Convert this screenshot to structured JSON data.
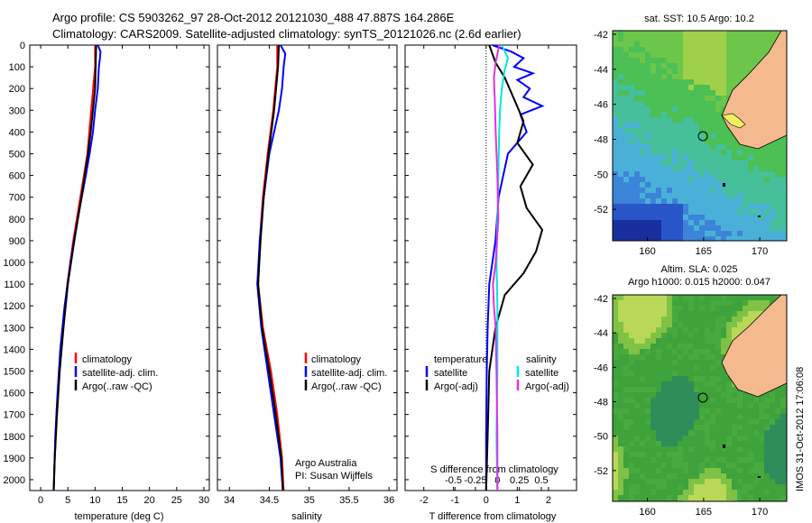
{
  "title_line1": "Argo profile: CS 5903262_97 28-Oct-2012 20121030_488 47.887S 164.286E",
  "title_line2": "Climatology: CARS2009. Satellite-adjusted climatology: synTS_20121026.nc (2.6d earlier)",
  "side_text": "IMOS 31-Oct-2012 17:06:08",
  "colors": {
    "climatology": "#ff0000",
    "satellite": "#0000ff",
    "argo": "#000000",
    "sal_satellite": "#00e5e5",
    "sal_argo": "#e033e0",
    "land": "#f4b98e"
  },
  "depth_ticks": [
    "0",
    "100",
    "200",
    "300",
    "400",
    "500",
    "600",
    "700",
    "800",
    "900",
    "1000",
    "1100",
    "1200",
    "1300",
    "1400",
    "1500",
    "1600",
    "1700",
    "1800",
    "1900",
    "2000"
  ],
  "panel1": {
    "xlabel": "temperature (deg C)",
    "xticks": [
      "0",
      "5",
      "10",
      "15",
      "20",
      "25",
      "30"
    ],
    "legend": [
      "climatology",
      "satellite-adj. clim.",
      "Argo(..raw -QC)"
    ]
  },
  "panel2": {
    "xlabel": "salinity",
    "xticks": [
      "34",
      "34.5",
      "35",
      "35.5",
      "36"
    ],
    "legend": [
      "climatology",
      "satellite-adj. clim.",
      "Argo(..raw -QC)"
    ],
    "note1": "Argo Australia",
    "note2": "PI: Susan Wijffels"
  },
  "panel3": {
    "xlabel": "T difference from climatology",
    "top_label": "S difference from climatology",
    "xticks": [
      "-2",
      "-1",
      "0",
      "1",
      "2"
    ],
    "sticks": [
      "-0.5",
      "-0.25",
      "0",
      "0.25",
      "0.5"
    ],
    "legend_temp_title": "temperature",
    "legend_sal_title": "salinity",
    "legend_temp": [
      "satellite",
      "Argo(-adj)"
    ],
    "legend_sal": [
      "satellite",
      "Argo(-adj)"
    ]
  },
  "map1": {
    "title": "sat. SST: 10.5  Argo: 10.2",
    "yticks": [
      "-42",
      "-44",
      "-46",
      "-48",
      "-50",
      "-52"
    ],
    "xticks": [
      "160",
      "165",
      "170"
    ]
  },
  "map2": {
    "title_line1": "Altim. SLA: 0.025",
    "title_line2": "Argo h1000: 0.015  h2000: 0.047",
    "yticks": [
      "-42",
      "-44",
      "-46",
      "-48",
      "-50",
      "-52"
    ],
    "xticks": [
      "160",
      "165",
      "170"
    ]
  },
  "chart_data": [
    {
      "type": "line",
      "name": "temperature profile",
      "xlabel": "temperature (deg C)",
      "ylim": [
        0,
        2050
      ],
      "xlim": [
        -2,
        31
      ],
      "series": [
        {
          "name": "climatology",
          "depth": [
            0,
            100,
            300,
            500,
            700,
            900,
            1100,
            1300,
            1500,
            1700,
            1900,
            2050
          ],
          "values": [
            10.0,
            10.0,
            9.3,
            8.6,
            7.3,
            6.0,
            4.9,
            4.1,
            3.4,
            2.9,
            2.6,
            2.4
          ]
        },
        {
          "name": "satellite-adj. clim.",
          "depth": [
            0,
            30,
            60,
            100,
            200,
            300,
            400,
            500,
            600,
            800,
            1000,
            1200,
            1400,
            1600,
            1800,
            2050
          ],
          "values": [
            10.5,
            11.0,
            10.9,
            10.7,
            10.5,
            10.0,
            9.6,
            9.0,
            8.3,
            6.8,
            5.5,
            4.4,
            3.6,
            3.1,
            2.7,
            2.4
          ]
        },
        {
          "name": "Argo(..raw -QC)",
          "depth": [
            0,
            100,
            200,
            300,
            400,
            500,
            700,
            900,
            1100,
            1300,
            1500,
            1700,
            1900,
            2050
          ],
          "values": [
            10.2,
            10.1,
            10.0,
            9.6,
            9.2,
            8.7,
            7.5,
            6.2,
            5.0,
            4.2,
            3.5,
            3.0,
            2.6,
            2.4
          ]
        }
      ]
    },
    {
      "type": "line",
      "name": "salinity profile",
      "xlabel": "salinity",
      "ylim": [
        0,
        2050
      ],
      "xlim": [
        33.85,
        36.1
      ],
      "series": [
        {
          "name": "climatology",
          "depth": [
            0,
            100,
            300,
            500,
            700,
            900,
            1100,
            1300,
            1500,
            1700,
            1900,
            2050
          ],
          "values": [
            34.6,
            34.6,
            34.55,
            34.48,
            34.42,
            34.38,
            34.36,
            34.42,
            34.52,
            34.6,
            34.66,
            34.68
          ]
        },
        {
          "name": "satellite-adj. clim.",
          "depth": [
            0,
            40,
            100,
            200,
            300,
            400,
            500,
            700,
            900,
            1100,
            1300,
            1500,
            1700,
            1900,
            2050
          ],
          "values": [
            34.64,
            34.7,
            34.68,
            34.66,
            34.62,
            34.56,
            34.5,
            34.43,
            34.38,
            34.35,
            34.4,
            34.48,
            34.56,
            34.64,
            34.67
          ]
        },
        {
          "name": "Argo(..raw -QC)",
          "depth": [
            0,
            100,
            300,
            500,
            700,
            900,
            1100,
            1300,
            1500,
            1700,
            1900,
            2050
          ],
          "values": [
            34.62,
            34.61,
            34.56,
            34.49,
            34.43,
            34.39,
            34.36,
            34.41,
            34.5,
            34.58,
            34.65,
            34.67
          ]
        }
      ]
    },
    {
      "type": "line",
      "name": "difference from climatology",
      "xlabel": "T difference from climatology",
      "ylim": [
        0,
        2050
      ],
      "xlim": [
        -2.6,
        2.9
      ],
      "series": [
        {
          "name": "temperature satellite",
          "depth": [
            0,
            30,
            60,
            100,
            130,
            160,
            200,
            240,
            280,
            320,
            400,
            500,
            700,
            900,
            1100,
            1300,
            1500,
            1800,
            2050
          ],
          "values": [
            0.2,
            0.8,
            1.2,
            0.9,
            1.5,
            1.0,
            1.4,
            1.2,
            1.8,
            1.1,
            1.3,
            0.7,
            0.4,
            0.3,
            0.1,
            0.05,
            0.02,
            0.0,
            0.0
          ]
        },
        {
          "name": "temperature Argo(-adj)",
          "depth": [
            0,
            80,
            150,
            250,
            350,
            450,
            550,
            650,
            750,
            850,
            950,
            1050,
            1150,
            1300,
            1500,
            1800,
            2050
          ],
          "values": [
            0.1,
            0.3,
            0.6,
            0.9,
            1.2,
            1.0,
            1.5,
            1.1,
            1.3,
            1.8,
            1.6,
            1.2,
            0.6,
            0.3,
            0.1,
            0.05,
            0.0
          ]
        },
        {
          "name": "salinity satellite",
          "depth": [
            0,
            60,
            120,
            200,
            300,
            400,
            600,
            800,
            1000,
            1200,
            1500,
            1800,
            2050
          ],
          "values": [
            0.05,
            0.12,
            0.08,
            0.05,
            0.03,
            0.02,
            0.01,
            0.0,
            -0.01,
            0.0,
            0.0,
            -0.01,
            0.0
          ]
        },
        {
          "name": "salinity Argo(-adj)",
          "depth": [
            0,
            80,
            150,
            250,
            400,
            600,
            800,
            1000,
            1100,
            1200,
            1300,
            1500,
            1800,
            2050
          ],
          "values": [
            0.02,
            -0.02,
            -0.04,
            -0.03,
            -0.02,
            0.0,
            0.01,
            -0.02,
            -0.05,
            -0.04,
            -0.02,
            -0.01,
            0.0,
            0.0
          ]
        }
      ]
    }
  ]
}
